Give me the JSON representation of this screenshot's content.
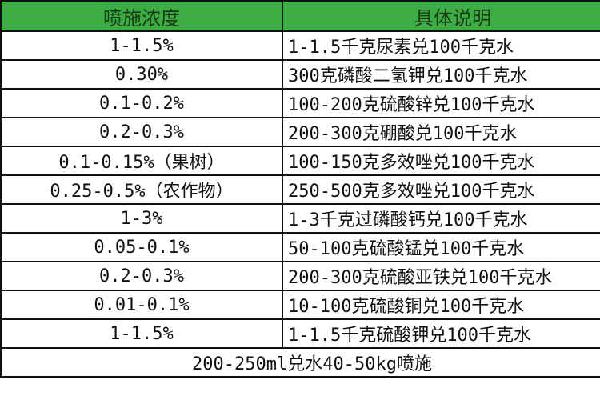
{
  "table": {
    "headers": [
      "喷施浓度",
      "具体说明"
    ],
    "rows": [
      [
        "1-1.5%",
        "1-1.5千克尿素兑100千克水"
      ],
      [
        "0.30%",
        "300克磷酸二氢钾兑100千克水"
      ],
      [
        "0.1-0.2%",
        "100-200克硫酸锌兑100千克水"
      ],
      [
        "0.2-0.3%",
        "200-300克硼酸兑100千克水"
      ],
      [
        "0.1-0.15%（果树）",
        "100-150克多效唑兑100千克水"
      ],
      [
        "0.25-0.5%（农作物）",
        "250-500克多效唑兑100千克水"
      ],
      [
        "1-3%",
        "1-3千克过磷酸钙兑100千克水"
      ],
      [
        "0.05-0.1%",
        "50-100克硫酸锰兑100千克水"
      ],
      [
        "0.2-0.3%",
        "200-300克硫酸亚铁兑100千克水"
      ],
      [
        "0.01-0.1%",
        "10-100克硫酸铜兑100千克水"
      ],
      [
        "1-1.5%",
        "1-1.5千克硫酸钾兑100千克水"
      ]
    ],
    "footer": "200-250ml兑水40-50kg喷施"
  },
  "colors": {
    "header_bg": "#3cac45"
  }
}
